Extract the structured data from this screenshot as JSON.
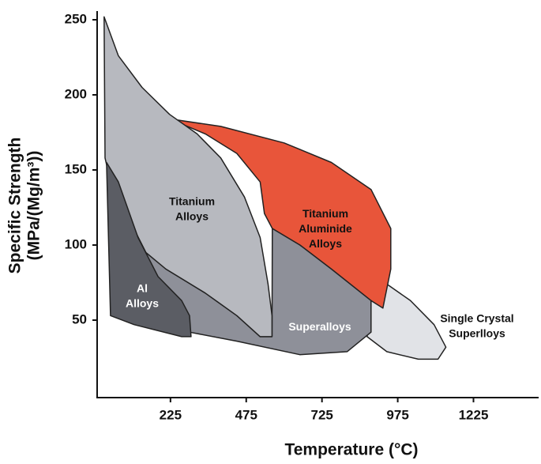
{
  "chart_data": {
    "type": "region",
    "x_label": "Temperature (°C)",
    "y_label": [
      "Specific Strength",
      "(MPa/(Mg/m³))"
    ],
    "xlim": [
      -17,
      1440
    ],
    "ylim": [
      0,
      255
    ],
    "xticks": [
      225,
      475,
      725,
      975,
      1225
    ],
    "yticks": [
      50,
      100,
      150,
      200,
      250
    ],
    "series": [
      {
        "name": "Single Crystal Superlloys",
        "color": "#e1e3e7",
        "x": [
          887,
          939,
          1017,
          1095,
          1134,
          1108,
          1043,
          939,
          874
        ],
        "values": [
          63,
          74,
          63,
          47,
          32,
          24,
          24,
          29,
          39
        ]
      },
      {
        "name": "Titanium Aluminide Alloys",
        "color": "#e8553a",
        "x": [
          222,
          391,
          600,
          756,
          887,
          952,
          952,
          926,
          887,
          756,
          652,
          561,
          535,
          521,
          444,
          340
        ],
        "values": [
          184,
          179,
          168,
          155,
          137,
          111,
          84,
          58,
          63,
          84,
          100,
          111,
          121,
          142,
          161,
          174
        ]
      },
      {
        "name": "Superalloys",
        "color": "#8e9099",
        "x": [
          118,
          210,
          340,
          444,
          521,
          560,
          561,
          652,
          756,
          887,
          887,
          808,
          652,
          444,
          288,
          184,
          131
        ],
        "values": [
          105,
          84,
          68,
          53,
          39,
          39,
          111,
          100,
          84,
          63,
          42,
          29,
          27,
          36,
          42,
          55,
          84
        ]
      },
      {
        "name": "Titanium Alloys",
        "color": "#b7b9bf",
        "x": [
          6,
          53,
          131,
          222,
          313,
          391,
          469,
          521,
          547,
          560,
          560,
          521,
          444,
          340,
          210,
          144,
          79,
          27,
          9
        ],
        "values": [
          252,
          226,
          205,
          187,
          174,
          158,
          132,
          105,
          74,
          53,
          39,
          39,
          53,
          68,
          84,
          95,
          121,
          142,
          158
        ]
      },
      {
        "name": "Al Alloys",
        "color": "#5b5d64",
        "x": [
          14,
          53,
          118,
          184,
          262,
          288,
          293,
          262,
          105,
          27
        ],
        "values": [
          155,
          142,
          105,
          79,
          63,
          53,
          39,
          39,
          47,
          53
        ]
      }
    ]
  }
}
